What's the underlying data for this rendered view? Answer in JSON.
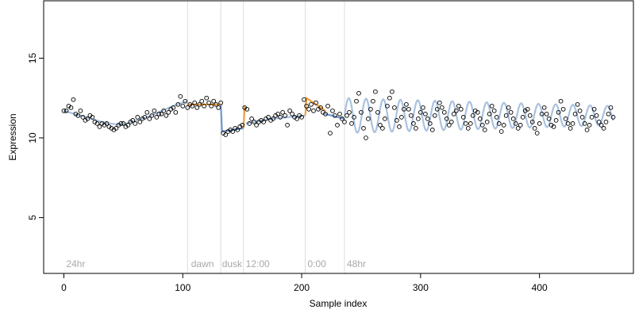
{
  "chart_data": {
    "type": "scatter",
    "title": "",
    "xlabel": "Sample index",
    "ylabel": "Expression",
    "xlim": [
      -17,
      479
    ],
    "ylim": [
      1.5,
      18.6
    ],
    "x_ticks": [
      0,
      100,
      200,
      300,
      400
    ],
    "y_ticks": [
      5,
      10,
      15
    ],
    "grid": false,
    "vertical_lines": [
      104,
      132,
      151,
      203,
      236
    ],
    "annotations": [
      {
        "text": "24hr",
        "x": 2,
        "y": 1.9
      },
      {
        "text": "dawn",
        "x": 107,
        "y": 1.9
      },
      {
        "text": "dusk",
        "x": 133,
        "y": 1.9
      },
      {
        "text": "12:00",
        "x": 153,
        "y": 1.9
      },
      {
        "text": "0:00",
        "x": 205,
        "y": 1.9
      },
      {
        "text": "48hr",
        "x": 238,
        "y": 1.9
      }
    ],
    "line_colors": {
      "fit_high": "#f0a040",
      "fit_low": "#6f97d0",
      "fit_periodic": "#a9c2df"
    },
    "point_style": {
      "stroke": "#000000",
      "fill": "none"
    },
    "fitted_segments": [
      {
        "x": [
          0,
          32,
          48,
          70,
          95,
          104
        ],
        "y": [
          11.7,
          11.0,
          10.8,
          11.3,
          12.1,
          12.3
        ],
        "color": "#a9c2df"
      },
      {
        "x": [
          104,
          132
        ],
        "y": [
          12.1,
          12.1
        ],
        "color": "#f0a040"
      },
      {
        "x": [
          132,
          133,
          151
        ],
        "y": [
          12.1,
          10.4,
          10.6
        ],
        "color": "#6f97d0"
      },
      {
        "x": [
          151,
          152,
          153
        ],
        "y": [
          10.6,
          11.9,
          11.8
        ],
        "color": "#f0a040"
      },
      {
        "x": [
          153,
          175,
          203
        ],
        "y": [
          10.9,
          11.2,
          11.4
        ],
        "color": "#a9c2df"
      },
      {
        "x": [
          203,
          204,
          220
        ],
        "y": [
          11.4,
          12.5,
          11.7
        ],
        "color": "#f0a040"
      },
      {
        "x": [
          220,
          236
        ],
        "y": [
          11.5,
          11.2
        ],
        "color": "#6f97d0"
      }
    ],
    "periodic_fit": {
      "x_start": 236,
      "x_end": 462,
      "mean": 11.4,
      "period": 14.5,
      "amplitude_start": 1.1,
      "amplitude_end": 0.6
    },
    "series": [
      {
        "x": [
          0,
          2,
          4,
          6,
          8,
          10,
          12,
          14,
          16,
          18,
          20,
          22,
          24,
          26,
          28,
          30,
          32,
          34,
          36,
          38,
          40,
          42,
          44,
          46,
          48,
          50,
          52,
          54,
          56,
          58,
          60,
          62,
          64,
          66,
          68,
          70,
          72,
          74,
          76,
          78,
          80,
          82,
          84,
          86,
          88,
          90,
          92,
          94,
          96,
          98,
          100,
          102,
          104,
          106,
          108,
          110,
          112,
          114,
          116,
          118,
          120,
          122,
          124,
          126,
          128,
          130,
          132,
          134,
          136,
          138,
          140,
          142,
          144,
          146,
          148,
          150,
          152,
          154,
          156,
          158,
          160,
          162,
          164,
          166,
          168,
          170,
          172,
          174,
          176,
          178,
          180,
          182,
          184,
          186,
          188,
          190,
          192,
          194,
          196,
          198,
          200,
          202,
          204,
          206,
          208,
          210,
          212,
          214,
          216,
          218,
          220,
          222,
          224,
          226,
          228,
          230,
          232,
          234,
          236,
          238,
          240,
          242,
          244,
          246,
          248,
          250,
          252,
          254,
          256,
          258,
          260,
          262,
          264,
          266,
          268,
          270,
          272,
          274,
          276,
          278,
          280,
          282,
          284,
          286,
          288,
          290,
          292,
          294,
          296,
          298,
          300,
          302,
          304,
          306,
          308,
          310,
          312,
          314,
          316,
          318,
          320,
          322,
          324,
          326,
          328,
          330,
          332,
          334,
          336,
          338,
          340,
          342,
          344,
          346,
          348,
          350,
          352,
          354,
          356,
          358,
          360,
          362,
          364,
          366,
          368,
          370,
          372,
          374,
          376,
          378,
          380,
          382,
          384,
          386,
          388,
          390,
          392,
          394,
          396,
          398,
          400,
          402,
          404,
          406,
          408,
          410,
          412,
          414,
          416,
          418,
          420,
          422,
          424,
          426,
          428,
          430,
          432,
          434,
          436,
          438,
          440,
          442,
          444,
          446,
          448,
          450,
          452,
          454,
          456,
          458,
          460,
          462
        ],
        "y": [
          11.7,
          11.7,
          12.0,
          11.9,
          12.4,
          11.5,
          11.4,
          11.7,
          11.3,
          11.1,
          11.2,
          11.4,
          11.3,
          11.0,
          10.9,
          10.7,
          10.9,
          10.8,
          10.9,
          10.7,
          10.6,
          10.5,
          10.6,
          10.8,
          10.9,
          10.9,
          10.7,
          10.8,
          11.0,
          11.1,
          10.9,
          11.3,
          11.0,
          11.2,
          11.3,
          11.6,
          11.2,
          11.4,
          11.7,
          11.3,
          11.5,
          11.5,
          11.7,
          11.4,
          11.6,
          11.8,
          11.9,
          11.6,
          12.1,
          12.6,
          12.0,
          12.3,
          11.9,
          12.1,
          12.0,
          12.2,
          11.9,
          12.1,
          12.3,
          12.0,
          12.5,
          12.2,
          12.0,
          12.3,
          12.1,
          11.9,
          12.2,
          10.3,
          10.2,
          10.4,
          10.5,
          10.4,
          10.6,
          10.5,
          10.7,
          10.8,
          11.9,
          11.8,
          10.9,
          11.2,
          11.0,
          10.8,
          11.0,
          11.1,
          11.0,
          11.2,
          11.3,
          11.1,
          11.2,
          11.4,
          11.5,
          11.3,
          11.6,
          11.4,
          10.8,
          11.7,
          11.5,
          11.3,
          11.2,
          11.4,
          11.3,
          12.4,
          12.0,
          11.8,
          12.1,
          11.7,
          12.2,
          11.8,
          11.9,
          11.6,
          11.5,
          12.0,
          10.3,
          11.7,
          11.4,
          10.8,
          11.5,
          11.2,
          11.0,
          11.4,
          11.6,
          10.9,
          11.3,
          12.3,
          12.8,
          11.6,
          10.6,
          10.0,
          11.2,
          11.8,
          12.3,
          12.9,
          11.6,
          10.8,
          10.6,
          11.2,
          12.0,
          12.5,
          12.9,
          11.9,
          11.1,
          10.7,
          11.3,
          11.8,
          12.1,
          11.8,
          11.4,
          10.9,
          10.6,
          11.2,
          11.6,
          11.9,
          11.5,
          11.2,
          10.9,
          10.5,
          11.4,
          11.8,
          12.2,
          11.9,
          11.6,
          11.2,
          10.8,
          11.0,
          11.5,
          11.7,
          12.0,
          11.8,
          11.3,
          10.9,
          10.6,
          10.9,
          11.4,
          11.7,
          11.6,
          11.2,
          10.8,
          10.5,
          11.0,
          11.5,
          12.0,
          11.7,
          11.3,
          10.9,
          10.4,
          10.8,
          11.4,
          11.9,
          11.6,
          11.2,
          10.9,
          10.6,
          10.8,
          11.3,
          11.7,
          11.8,
          11.4,
          11.0,
          10.6,
          10.3,
          10.9,
          11.5,
          11.9,
          11.5,
          11.2,
          10.8,
          10.7,
          11.1,
          11.6,
          12.3,
          11.8,
          11.2,
          10.9,
          10.6,
          10.9,
          11.5,
          12.1,
          11.7,
          11.3,
          10.9,
          10.5,
          10.8,
          11.3,
          11.8,
          11.4,
          11.0,
          10.8,
          10.6,
          11.0,
          11.5,
          11.9,
          11.3
        ]
      }
    ]
  }
}
